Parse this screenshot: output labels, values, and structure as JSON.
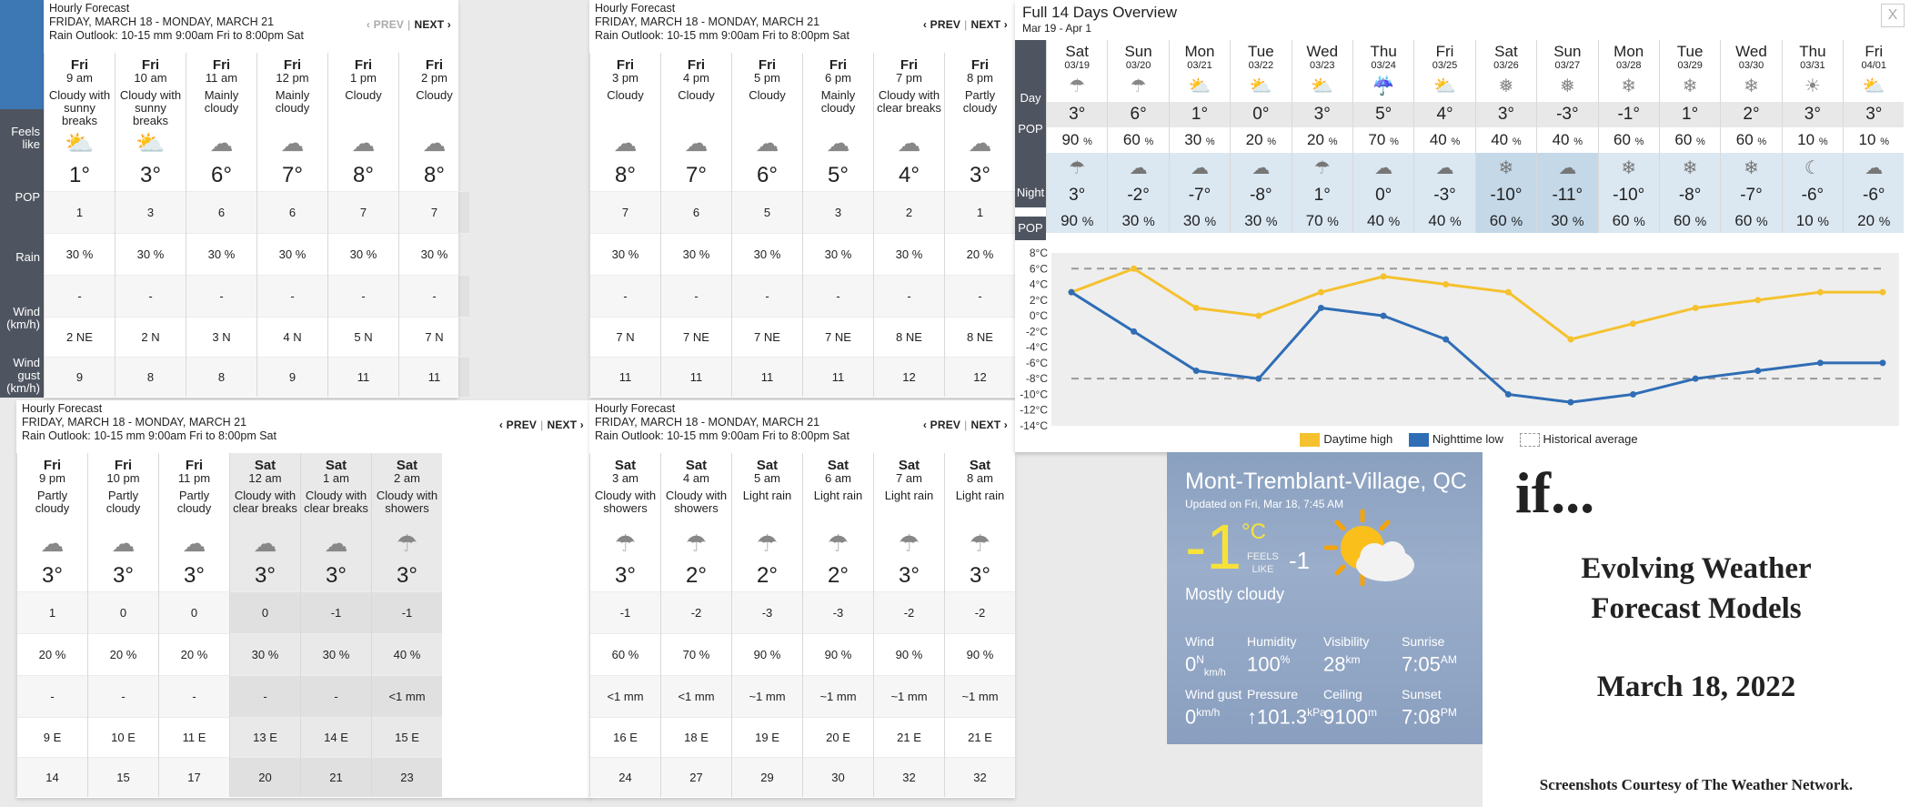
{
  "labels": {
    "feels": "Feels like",
    "pop": "POP",
    "rain": "Rain",
    "wind": "Wind (km/h)",
    "gust": "Wind gust (km/h)"
  },
  "panels": [
    {
      "header": "Hourly Forecast",
      "range": "FRIDAY, MARCH 18 - MONDAY, MARCH 21",
      "outlook": "Rain Outlook: 10-15 mm 9:00am Fri to 8:00pm Sat",
      "prev": "‹ PREV",
      "next": "NEXT ›",
      "prev_disabled": true,
      "cols": [
        {
          "day": "Fri",
          "time": "9 am",
          "cond": "Cloudy with sunny breaks",
          "icon": "sun-cloud-icon",
          "temp": "1°",
          "feels": "1",
          "pop": "30 %",
          "rain": "-",
          "wind": "2 NE",
          "gust": "9"
        },
        {
          "day": "Fri",
          "time": "10 am",
          "cond": "Cloudy with sunny breaks",
          "icon": "sun-cloud-icon",
          "temp": "3°",
          "feels": "3",
          "pop": "30 %",
          "rain": "-",
          "wind": "2 N",
          "gust": "8"
        },
        {
          "day": "Fri",
          "time": "11 am",
          "cond": "Mainly cloudy",
          "icon": "cloud-icon",
          "temp": "6°",
          "feels": "6",
          "pop": "30 %",
          "rain": "-",
          "wind": "3 N",
          "gust": "8"
        },
        {
          "day": "Fri",
          "time": "12 pm",
          "cond": "Mainly cloudy",
          "icon": "cloud-icon",
          "temp": "7°",
          "feels": "6",
          "pop": "30 %",
          "rain": "-",
          "wind": "4 N",
          "gust": "9"
        },
        {
          "day": "Fri",
          "time": "1 pm",
          "cond": "Cloudy",
          "icon": "cloud-icon",
          "temp": "8°",
          "feels": "7",
          "pop": "30 %",
          "rain": "-",
          "wind": "5 N",
          "gust": "11"
        },
        {
          "day": "Fri",
          "time": "2 pm",
          "cond": "Cloudy",
          "icon": "cloud-icon",
          "temp": "8°",
          "feels": "7",
          "pop": "30 %",
          "rain": "-",
          "wind": "7 N",
          "gust": "11"
        }
      ]
    },
    {
      "header": "Hourly Forecast",
      "range": "FRIDAY, MARCH 18 - MONDAY, MARCH 21",
      "outlook": "Rain Outlook: 10-15 mm 9:00am Fri to 8:00pm Sat",
      "prev": "‹ PREV",
      "next": "NEXT ›",
      "prev_disabled": false,
      "cols": [
        {
          "day": "Fri",
          "time": "3 pm",
          "cond": "Cloudy",
          "icon": "cloud-icon",
          "temp": "8°",
          "feels": "7",
          "pop": "30 %",
          "rain": "-",
          "wind": "7 N",
          "gust": "11"
        },
        {
          "day": "Fri",
          "time": "4 pm",
          "cond": "Cloudy",
          "icon": "cloud-icon",
          "temp": "7°",
          "feels": "6",
          "pop": "30 %",
          "rain": "-",
          "wind": "7 NE",
          "gust": "11"
        },
        {
          "day": "Fri",
          "time": "5 pm",
          "cond": "Cloudy",
          "icon": "cloud-icon",
          "temp": "6°",
          "feels": "5",
          "pop": "30 %",
          "rain": "-",
          "wind": "7 NE",
          "gust": "11"
        },
        {
          "day": "Fri",
          "time": "6 pm",
          "cond": "Mainly cloudy",
          "icon": "cloud-icon",
          "temp": "5°",
          "feels": "3",
          "pop": "30 %",
          "rain": "-",
          "wind": "7 NE",
          "gust": "11"
        },
        {
          "day": "Fri",
          "time": "7 pm",
          "cond": "Cloudy with clear breaks",
          "icon": "moon-cloud-icon",
          "temp": "4°",
          "feels": "2",
          "pop": "30 %",
          "rain": "-",
          "wind": "8 NE",
          "gust": "12"
        },
        {
          "day": "Fri",
          "time": "8 pm",
          "cond": "Partly cloudy",
          "icon": "moon-cloud-icon",
          "temp": "3°",
          "feels": "1",
          "pop": "20 %",
          "rain": "-",
          "wind": "8 NE",
          "gust": "12"
        }
      ]
    },
    {
      "header": "Hourly Forecast",
      "range": "FRIDAY, MARCH 18 - MONDAY, MARCH 21",
      "outlook": "Rain Outlook: 10-15 mm 9:00am Fri to 8:00pm Sat",
      "prev": "‹ PREV",
      "next": "NEXT ›",
      "prev_disabled": false,
      "cols": [
        {
          "day": "Fri",
          "time": "9 pm",
          "cond": "Partly cloudy",
          "icon": "moon-cloud-icon",
          "temp": "3°",
          "feels": "1",
          "pop": "20 %",
          "rain": "-",
          "wind": "9 E",
          "gust": "14"
        },
        {
          "day": "Fri",
          "time": "10 pm",
          "cond": "Partly cloudy",
          "icon": "moon-cloud-icon",
          "temp": "3°",
          "feels": "0",
          "pop": "20 %",
          "rain": "-",
          "wind": "10 E",
          "gust": "15"
        },
        {
          "day": "Fri",
          "time": "11 pm",
          "cond": "Partly cloudy",
          "icon": "moon-cloud-icon",
          "temp": "3°",
          "feels": "0",
          "pop": "20 %",
          "rain": "-",
          "wind": "11 E",
          "gust": "17"
        },
        {
          "day": "Sat",
          "time": "12 am",
          "cond": "Cloudy with clear breaks",
          "icon": "moon-cloud-icon",
          "temp": "3°",
          "feels": "0",
          "pop": "30 %",
          "rain": "-",
          "wind": "13 E",
          "gust": "20"
        },
        {
          "day": "Sat",
          "time": "1 am",
          "cond": "Cloudy with clear breaks",
          "icon": "moon-cloud-icon",
          "temp": "3°",
          "feels": "-1",
          "pop": "30 %",
          "rain": "-",
          "wind": "14 E",
          "gust": "21"
        },
        {
          "day": "Sat",
          "time": "2 am",
          "cond": "Cloudy with showers",
          "icon": "rain-cloud-icon",
          "temp": "3°",
          "feels": "-1",
          "pop": "40 %",
          "rain": "<1 mm",
          "wind": "15 E",
          "gust": "23"
        }
      ]
    },
    {
      "header": "Hourly Forecast",
      "range": "FRIDAY, MARCH 18 - MONDAY, MARCH 21",
      "outlook": "Rain Outlook: 10-15 mm 9:00am Fri to 8:00pm Sat",
      "prev": "‹ PREV",
      "next": "NEXT ›",
      "prev_disabled": false,
      "cols": [
        {
          "day": "Sat",
          "time": "3 am",
          "cond": "Cloudy with showers",
          "icon": "rain-cloud-icon",
          "temp": "3°",
          "feels": "-1",
          "pop": "60 %",
          "rain": "<1 mm",
          "wind": "16 E",
          "gust": "24"
        },
        {
          "day": "Sat",
          "time": "4 am",
          "cond": "Cloudy with showers",
          "icon": "rain-cloud-icon",
          "temp": "2°",
          "feels": "-2",
          "pop": "70 %",
          "rain": "<1 mm",
          "wind": "18 E",
          "gust": "27"
        },
        {
          "day": "Sat",
          "time": "5 am",
          "cond": "Light rain",
          "icon": "rain-cloud-icon",
          "temp": "2°",
          "feels": "-3",
          "pop": "90 %",
          "rain": "~1 mm",
          "wind": "19 E",
          "gust": "29"
        },
        {
          "day": "Sat",
          "time": "6 am",
          "cond": "Light rain",
          "icon": "rain-cloud-icon",
          "temp": "2°",
          "feels": "-3",
          "pop": "90 %",
          "rain": "~1 mm",
          "wind": "20 E",
          "gust": "30"
        },
        {
          "day": "Sat",
          "time": "7 am",
          "cond": "Light rain",
          "icon": "rain-cloud-icon",
          "temp": "3°",
          "feels": "-2",
          "pop": "90 %",
          "rain": "~1 mm",
          "wind": "21 E",
          "gust": "32"
        },
        {
          "day": "Sat",
          "time": "8 am",
          "cond": "Light rain",
          "icon": "rain-cloud-icon",
          "temp": "3°",
          "feels": "-2",
          "pop": "90 %",
          "rain": "~1 mm",
          "wind": "21 E",
          "gust": "32"
        }
      ]
    }
  ],
  "overview": {
    "title": "Full 14 Days Overview",
    "sub": "Mar 19 - Apr 1",
    "close": "X",
    "day_label": "Day",
    "pop_label": "POP",
    "night_label": "Night",
    "days": [
      {
        "name": "Sat",
        "date": "03/19",
        "icon": "rain-cloud-icon",
        "high": "3°",
        "pop": "90",
        "nicon": "rain-cloud-icon",
        "low": "3°",
        "npop": "90"
      },
      {
        "name": "Sun",
        "date": "03/20",
        "icon": "rain-cloud-icon",
        "high": "6°",
        "pop": "60",
        "nicon": "moon-cloud-icon",
        "low": "-2°",
        "npop": "30"
      },
      {
        "name": "Mon",
        "date": "03/21",
        "icon": "sun-cloud-icon",
        "high": "1°",
        "pop": "30",
        "nicon": "cloud-icon",
        "low": "-7°",
        "npop": "30"
      },
      {
        "name": "Tue",
        "date": "03/22",
        "icon": "sun-cloud-icon",
        "high": "0°",
        "pop": "20",
        "nicon": "moon-cloud-icon",
        "low": "-8°",
        "npop": "30"
      },
      {
        "name": "Wed",
        "date": "03/23",
        "icon": "sun-cloud-icon",
        "high": "3°",
        "pop": "20",
        "nicon": "rain-cloud-icon",
        "low": "1°",
        "npop": "70"
      },
      {
        "name": "Thu",
        "date": "03/24",
        "icon": "sun-rain-icon",
        "high": "5°",
        "pop": "70",
        "nicon": "moon-cloud-icon",
        "low": "0°",
        "npop": "40"
      },
      {
        "name": "Fri",
        "date": "03/25",
        "icon": "sun-cloud-icon",
        "high": "4°",
        "pop": "40",
        "nicon": "moon-cloud-icon",
        "low": "-3°",
        "npop": "40"
      },
      {
        "name": "Sat",
        "date": "03/26",
        "icon": "sun-snow-icon",
        "high": "3°",
        "pop": "40",
        "nicon": "snow-cloud-icon",
        "low": "-10°",
        "npop": "60"
      },
      {
        "name": "Sun",
        "date": "03/27",
        "icon": "sun-snow-icon",
        "high": "-3°",
        "pop": "40",
        "nicon": "moon-cloud-icon",
        "low": "-11°",
        "npop": "30"
      },
      {
        "name": "Mon",
        "date": "03/28",
        "icon": "snow-cloud-icon",
        "high": "-1°",
        "pop": "60",
        "nicon": "snow-cloud-icon",
        "low": "-10°",
        "npop": "60"
      },
      {
        "name": "Tue",
        "date": "03/29",
        "icon": "snow-cloud-icon",
        "high": "1°",
        "pop": "60",
        "nicon": "snow-cloud-icon",
        "low": "-8°",
        "npop": "60"
      },
      {
        "name": "Wed",
        "date": "03/30",
        "icon": "snow-cloud-icon",
        "high": "2°",
        "pop": "60",
        "nicon": "snow-cloud-icon",
        "low": "-7°",
        "npop": "60"
      },
      {
        "name": "Thu",
        "date": "03/31",
        "icon": "sun-icon",
        "high": "3°",
        "pop": "10",
        "nicon": "moon-icon",
        "low": "-6°",
        "npop": "10"
      },
      {
        "name": "Fri",
        "date": "04/01",
        "icon": "sun-cloud-icon",
        "high": "3°",
        "pop": "10",
        "nicon": "moon-cloud-icon",
        "low": "-6°",
        "npop": "20"
      }
    ],
    "pct": "%"
  },
  "chart_data": {
    "type": "line",
    "categories": [
      "03/19",
      "03/20",
      "03/21",
      "03/22",
      "03/23",
      "03/24",
      "03/25",
      "03/26",
      "03/27",
      "03/28",
      "03/29",
      "03/30",
      "03/31",
      "04/01"
    ],
    "series": [
      {
        "name": "Daytime high",
        "color": "#f5c12e",
        "values": [
          3,
          6,
          1,
          0,
          3,
          5,
          4,
          3,
          -3,
          -1,
          1,
          2,
          3,
          3
        ]
      },
      {
        "name": "Nighttime low",
        "color": "#2f6db5",
        "values": [
          3,
          -2,
          -7,
          -8,
          1,
          0,
          -3,
          -10,
          -11,
          -10,
          -8,
          -7,
          -6,
          -6
        ]
      },
      {
        "name": "Historical average",
        "color": "#999999",
        "values_high": [
          6,
          6,
          6,
          6,
          6,
          6,
          6,
          6,
          6,
          6,
          6,
          6,
          6,
          6
        ],
        "values_low": [
          -8,
          -8,
          -8,
          -8,
          -8,
          -8,
          -8,
          -8,
          -8,
          -8,
          -8,
          -8,
          -8,
          -8
        ]
      }
    ],
    "yticks": [
      "8°C",
      "6°C",
      "4°C",
      "2°C",
      "0°C",
      "-2°C",
      "-4°C",
      "-6°C",
      "-8°C",
      "-10°C",
      "-12°C",
      "-14°C"
    ],
    "ylim": [
      -14,
      8
    ],
    "legend_position": "bottom"
  },
  "current": {
    "city": "Mont-Tremblant-Village, QC",
    "updated": "Updated on Fri, Mar 18, 7:45 AM",
    "temp": "-1",
    "unit": "°C",
    "feels_label1": "FEELS",
    "feels_label2": "LIKE",
    "feels": "-1",
    "condition": "Mostly cloudy",
    "stats": {
      "wind_label": "Wind",
      "wind": "0",
      "wind_dir": "N",
      "wind_unit": "km/h",
      "humidity_label": "Humidity",
      "humidity": "100",
      "humidity_unit": "%",
      "visibility_label": "Visibility",
      "visibility": "28",
      "visibility_unit": "km",
      "sunrise_label": "Sunrise",
      "sunrise": "7:05",
      "sunrise_unit": "AM",
      "gust_label": "Wind gust",
      "gust": "0",
      "gust_unit": "km/h",
      "pressure_label": "Pressure",
      "pressure": "↑101.3",
      "pressure_unit": "kPa",
      "ceiling_label": "Ceiling",
      "ceiling": "9100",
      "ceiling_unit": "m",
      "sunset_label": "Sunset",
      "sunset": "7:08",
      "sunset_unit": "PM"
    }
  },
  "side_text": {
    "if": "if...",
    "line1": "Evolving Weather",
    "line2": "Forecast Models",
    "date": "March 18, 2022",
    "credit": "Screenshots Courtesy of The Weather Network."
  },
  "colors": {
    "high": "#f5c12e",
    "low": "#2f6db5",
    "strip": "#4f5560",
    "strip_accent": "#3d78b4"
  }
}
